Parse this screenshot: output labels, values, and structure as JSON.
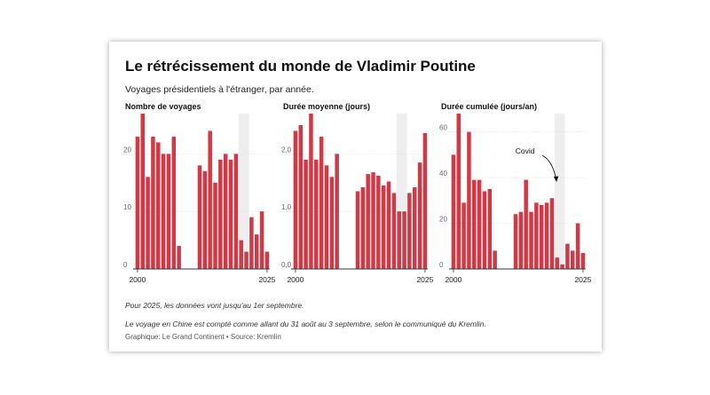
{
  "title": "Le rétrécissement du monde de Vladimir Poutine",
  "subtitle": "Voyages présidentiels à l'étranger, par année.",
  "note1": "Pour 2025, les données vont jusqu'au 1er septembre.",
  "note2": "Le voyage en Chine est compté comme allant du 31 août au 3 septembre, selon le communiqué du Kremlin.",
  "source": "Graphique: Le Grand Continent • Source: Kremlin",
  "colors": {
    "bar": "#d03a47",
    "covid_band": "#eeeeee",
    "axis": "#333333"
  },
  "chart_data": [
    {
      "type": "bar",
      "title": "Nombre de voyages",
      "x": [
        2000,
        2001,
        2002,
        2003,
        2004,
        2005,
        2006,
        2007,
        2008,
        2009,
        2010,
        2011,
        2012,
        2013,
        2014,
        2015,
        2016,
        2017,
        2018,
        2019,
        2020,
        2021,
        2022,
        2023,
        2024,
        2025
      ],
      "values": [
        23,
        27,
        16,
        23,
        22,
        20,
        20,
        23,
        4,
        null,
        null,
        null,
        18,
        17,
        24,
        15,
        19,
        20,
        19,
        20,
        5,
        3,
        9,
        6,
        10,
        3
      ],
      "yticks": [
        0,
        10,
        20
      ],
      "ylim": [
        0,
        27
      ],
      "xticks": [
        2000,
        2025
      ],
      "shaded_band": [
        2020,
        2021
      ]
    },
    {
      "type": "bar",
      "title": "Durée moyenne (jours)",
      "x": [
        2000,
        2001,
        2002,
        2003,
        2004,
        2005,
        2006,
        2007,
        2008,
        2009,
        2010,
        2011,
        2012,
        2013,
        2014,
        2015,
        2016,
        2017,
        2018,
        2019,
        2020,
        2021,
        2022,
        2023,
        2024,
        2025
      ],
      "values": [
        2.4,
        2.5,
        1.9,
        2.7,
        1.9,
        2.3,
        1.8,
        1.6,
        2.0,
        null,
        null,
        null,
        1.35,
        1.42,
        1.65,
        1.68,
        1.62,
        1.45,
        1.52,
        1.32,
        1.0,
        1.0,
        1.32,
        1.42,
        1.85,
        2.36
      ],
      "yticks": [
        0.0,
        1.0,
        2.0
      ],
      "ylim": [
        0,
        2.7
      ],
      "xticks": [
        2000,
        2025
      ],
      "shaded_band": [
        2020,
        2021
      ]
    },
    {
      "type": "bar",
      "title": "Durée cumulée (jours/an)",
      "x": [
        2000,
        2001,
        2002,
        2003,
        2004,
        2005,
        2006,
        2007,
        2008,
        2009,
        2010,
        2011,
        2012,
        2013,
        2014,
        2015,
        2016,
        2017,
        2018,
        2019,
        2020,
        2021,
        2022,
        2023,
        2024,
        2025
      ],
      "values": [
        50,
        68,
        29,
        60,
        39,
        39,
        34,
        35,
        8,
        null,
        null,
        null,
        24,
        25,
        39,
        25,
        29,
        28,
        29,
        31,
        5,
        2,
        11,
        8,
        20,
        7
      ],
      "yticks": [
        0,
        20,
        40,
        60
      ],
      "ylim": [
        0,
        68
      ],
      "xticks": [
        2000,
        2025
      ],
      "shaded_band": [
        2020,
        2021
      ],
      "annotation": {
        "text": "Covid",
        "x": 2020
      }
    }
  ]
}
